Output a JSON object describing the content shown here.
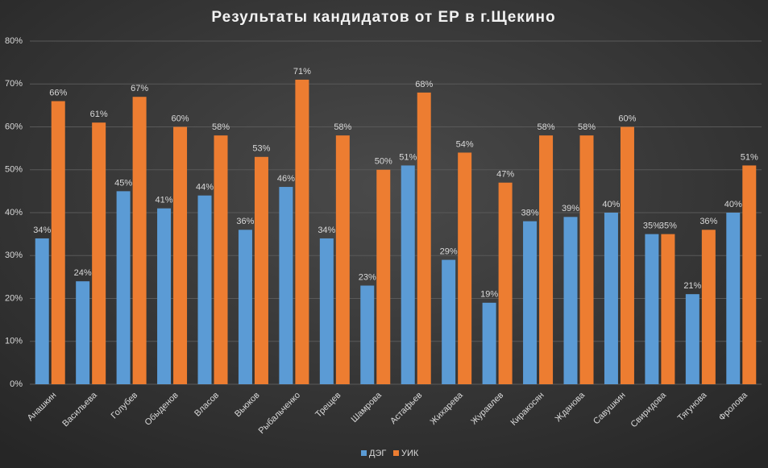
{
  "chart_data": {
    "type": "bar",
    "title": "Результаты кандидатов от ЕР в г.Щекино",
    "categories": [
      "Анашкин",
      "Васильева",
      "Голубев",
      "Обыденов",
      "Власов",
      "Вьюков",
      "Рыбальченко",
      "Трещев",
      "Шамрова",
      "Астафьев",
      "Жихарева",
      "Журавлев",
      "Киракосян",
      "Жданова",
      "Савушкин",
      "Свиридова",
      "Тягунова",
      "Фролова"
    ],
    "series": [
      {
        "name": "ДЭГ",
        "color": "#5b9bd5",
        "values": [
          34,
          24,
          45,
          41,
          44,
          36,
          46,
          34,
          23,
          51,
          29,
          19,
          38,
          39,
          40,
          35,
          21,
          40
        ],
        "value_labels": [
          "34%",
          "24%",
          "45%",
          "41%",
          "44%",
          "36%",
          "46%",
          "34%",
          "23%",
          "51%",
          "29%",
          "19%",
          "38%",
          "39%",
          "40%",
          "35%",
          "21%",
          "40%"
        ]
      },
      {
        "name": "УИК",
        "color": "#ed7d31",
        "values": [
          66,
          61,
          67,
          60,
          58,
          53,
          71,
          58,
          50,
          68,
          54,
          47,
          58,
          58,
          60,
          35,
          36,
          51
        ],
        "value_labels": [
          "66%",
          "61%",
          "67%",
          "60%",
          "58%",
          "53%",
          "71%",
          "58%",
          "50%",
          "68%",
          "54%",
          "47%",
          "58%",
          "58%",
          "60%",
          "35%",
          "36%",
          "51%"
        ]
      }
    ],
    "ylim": [
      0,
      80
    ],
    "yticks": [
      {
        "value": 0,
        "label": "0%"
      },
      {
        "value": 10,
        "label": "10%"
      },
      {
        "value": 20,
        "label": "20%"
      },
      {
        "value": 30,
        "label": "30%"
      },
      {
        "value": 40,
        "label": "40%"
      },
      {
        "value": 50,
        "label": "50%"
      },
      {
        "value": 60,
        "label": "60%"
      },
      {
        "value": 70,
        "label": "70%"
      },
      {
        "value": 80,
        "label": "80%"
      }
    ],
    "grid": true,
    "legend": "bottom"
  }
}
